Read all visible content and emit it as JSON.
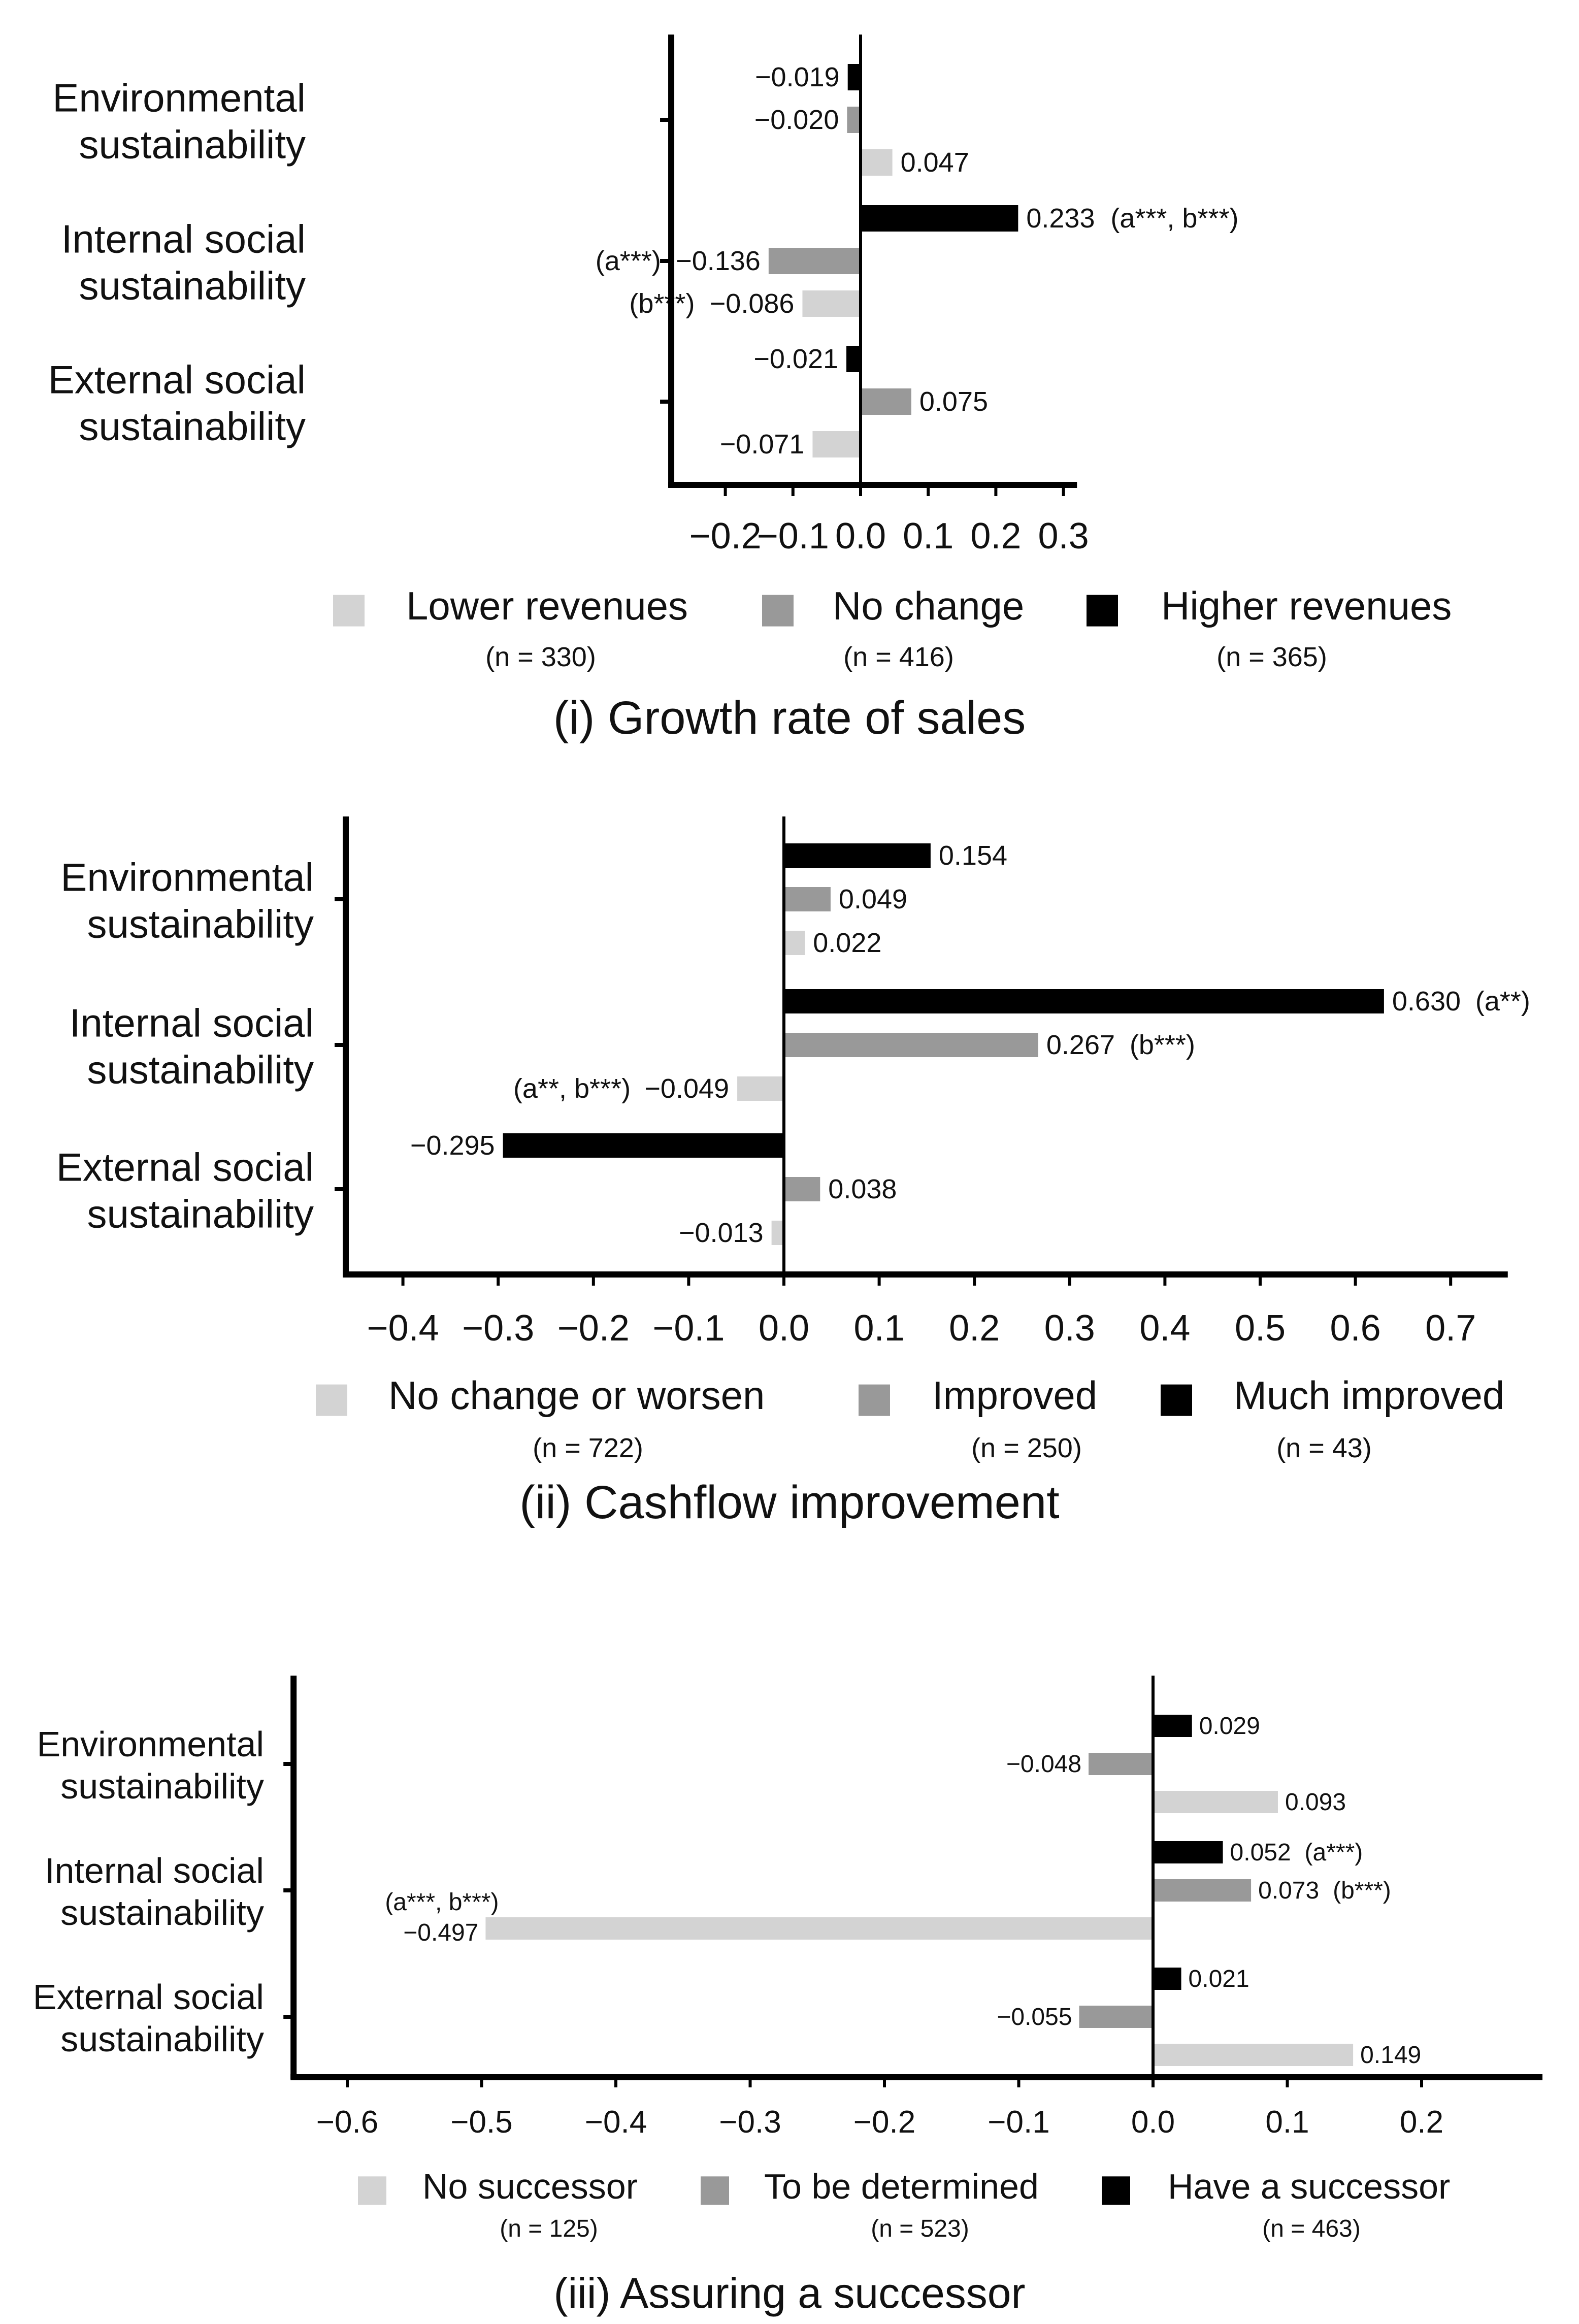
{
  "chart_data": [
    {
      "type": "bar",
      "orientation": "horizontal",
      "panel": "i",
      "title": "(i) Growth rate of sales",
      "categories": [
        "Environmental sustainability",
        "Internal social sustainability",
        "External social sustainability"
      ],
      "category_lines": [
        [
          "Environmental",
          "sustainability"
        ],
        [
          "Internal social",
          "sustainability"
        ],
        [
          "External social",
          "sustainability"
        ]
      ],
      "series": [
        {
          "name": "Higher revenues",
          "n_label": "(n = 365)",
          "color": "#000000",
          "values": [
            -0.019,
            0.233,
            -0.021
          ],
          "labels": [
            "−0.019",
            "0.233",
            "−0.021"
          ],
          "notes": [
            "",
            "(a***, b***)",
            ""
          ]
        },
        {
          "name": "No change",
          "n_label": "(n = 416)",
          "color": "#999999",
          "values": [
            -0.02,
            -0.136,
            0.075
          ],
          "labels": [
            "−0.020",
            "−0.136",
            "0.075"
          ],
          "notes": [
            "",
            "(a***)",
            ""
          ]
        },
        {
          "name": "Lower revenues",
          "n_label": "(n = 330)",
          "color": "#d3d3d3",
          "values": [
            0.047,
            -0.086,
            -0.071
          ],
          "labels": [
            "0.047",
            "−0.086",
            "−0.071"
          ],
          "notes": [
            "",
            "(b***)",
            ""
          ]
        }
      ],
      "legend_order": [
        "Lower revenues",
        "No change",
        "Higher revenues"
      ],
      "xlim": [
        -0.28,
        0.32
      ],
      "xticks": [
        -0.2,
        -0.1,
        0.0,
        0.1,
        0.2,
        0.3
      ],
      "xtick_labels": [
        "−0.2",
        "−0.1",
        "0.0",
        "0.1",
        "0.2",
        "0.3"
      ]
    },
    {
      "type": "bar",
      "orientation": "horizontal",
      "panel": "ii",
      "title": "(ii) Cashflow improvement",
      "categories": [
        "Environmental sustainability",
        "Internal social sustainability",
        "External social sustainability"
      ],
      "category_lines": [
        [
          "Environmental",
          "sustainability"
        ],
        [
          "Internal social",
          "sustainability"
        ],
        [
          "External social",
          "sustainability"
        ]
      ],
      "series": [
        {
          "name": "Much improved",
          "n_label": "(n = 43)",
          "color": "#000000",
          "values": [
            0.154,
            0.63,
            -0.295
          ],
          "labels": [
            "0.154",
            "0.630",
            "−0.295"
          ],
          "notes": [
            "",
            "(a**)",
            ""
          ]
        },
        {
          "name": "Improved",
          "n_label": "(n = 250)",
          "color": "#999999",
          "values": [
            0.049,
            0.267,
            0.038
          ],
          "labels": [
            "0.049",
            "0.267",
            "0.038"
          ],
          "notes": [
            "",
            "(b***)",
            ""
          ]
        },
        {
          "name": "No change or worsen",
          "n_label": "(n = 722)",
          "color": "#d3d3d3",
          "values": [
            0.022,
            -0.049,
            -0.013
          ],
          "labels": [
            "0.022",
            "−0.049",
            "−0.013"
          ],
          "notes": [
            "",
            "(a**, b***)",
            ""
          ]
        }
      ],
      "legend_order": [
        "No change or worsen",
        "Improved",
        "Much improved"
      ],
      "xlim": [
        -0.46,
        0.76
      ],
      "xticks": [
        -0.4,
        -0.3,
        -0.2,
        -0.1,
        0.0,
        0.1,
        0.2,
        0.3,
        0.4,
        0.5,
        0.6,
        0.7
      ],
      "xtick_labels": [
        "−0.4",
        "−0.3",
        "−0.2",
        "−0.1",
        "0.0",
        "0.1",
        "0.2",
        "0.3",
        "0.4",
        "0.5",
        "0.6",
        "0.7"
      ]
    },
    {
      "type": "bar",
      "orientation": "horizontal",
      "panel": "iii",
      "title": "(iii) Assuring a successor",
      "categories": [
        "Environmental sustainability",
        "Internal social sustainability",
        "External social sustainability"
      ],
      "category_lines": [
        [
          "Environmental",
          "sustainability"
        ],
        [
          "Internal social",
          "sustainability"
        ],
        [
          "External social",
          "sustainability"
        ]
      ],
      "series": [
        {
          "name": "Have a successor",
          "n_label": "(n = 463)",
          "color": "#000000",
          "values": [
            0.029,
            0.052,
            0.021
          ],
          "labels": [
            "0.029",
            "0.052",
            "0.021"
          ],
          "notes": [
            "",
            "(a***)",
            ""
          ]
        },
        {
          "name": "To be determined",
          "n_label": "(n = 523)",
          "color": "#999999",
          "values": [
            -0.048,
            0.073,
            -0.055
          ],
          "labels": [
            "−0.048",
            "0.073",
            "−0.055"
          ],
          "notes": [
            "",
            "(b***)",
            ""
          ]
        },
        {
          "name": "No successor",
          "n_label": "(n = 125)",
          "color": "#d3d3d3",
          "values": [
            0.093,
            -0.497,
            0.149
          ],
          "labels": [
            "0.093",
            "−0.497",
            "0.149"
          ],
          "notes": [
            "",
            "(a***, b***)",
            ""
          ]
        }
      ],
      "legend_order": [
        "No successor",
        "To be determined",
        "Have a successor"
      ],
      "xlim": [
        -0.64,
        0.29
      ],
      "xticks": [
        -0.6,
        -0.5,
        -0.4,
        -0.3,
        -0.2,
        -0.1,
        0.0,
        0.1,
        0.2
      ],
      "xtick_labels": [
        "−0.6",
        "−0.5",
        "−0.4",
        "−0.3",
        "−0.2",
        "−0.1",
        "0.0",
        "0.1",
        "0.2"
      ]
    }
  ]
}
